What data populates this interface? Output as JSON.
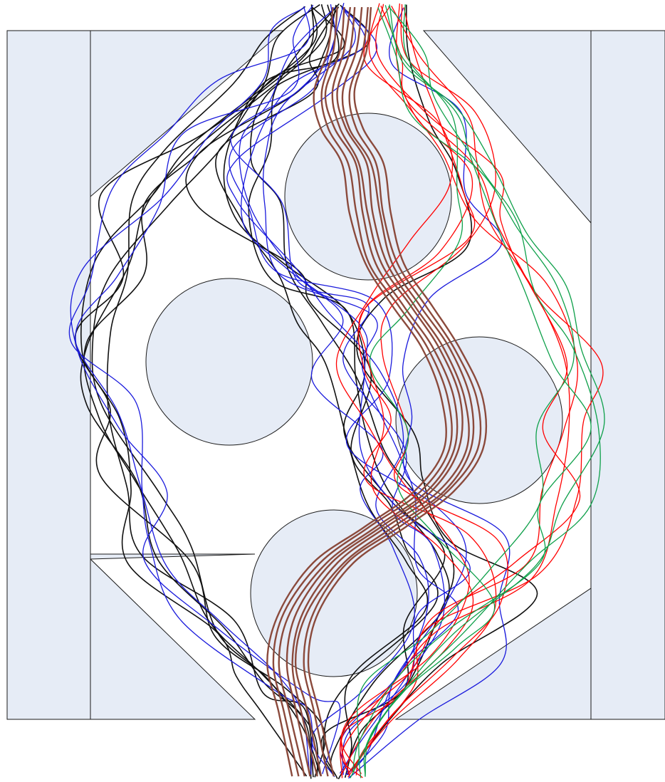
{
  "colors": {
    "background": "#ffffff",
    "solid_fill": "#e6ecf6",
    "outline": "#1a1a1a",
    "paths": {
      "black": "#111111",
      "blue": "#1a1adc",
      "brown": "#8b4a3c",
      "red": "#ff0000",
      "green": "#0ea04a"
    }
  },
  "path_groups": [
    {
      "color_key": "black"
    },
    {
      "color_key": "blue"
    },
    {
      "color_key": "red"
    },
    {
      "color_key": "green"
    },
    {
      "color_key": "brown"
    }
  ]
}
